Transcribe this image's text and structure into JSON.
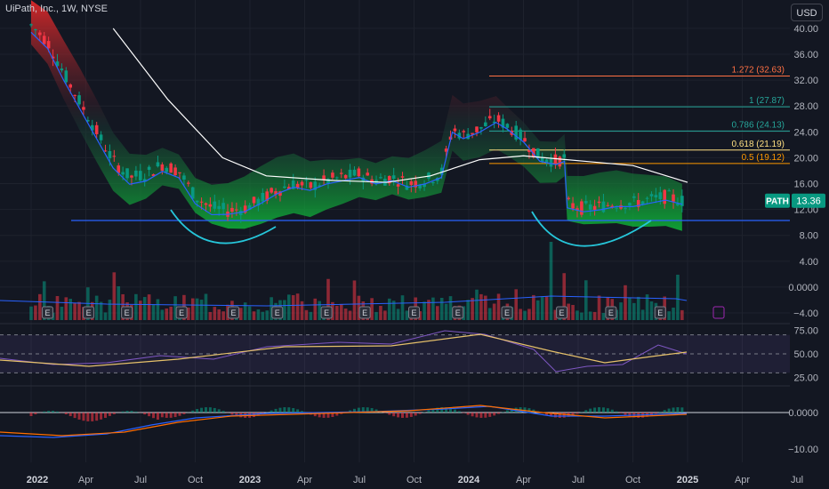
{
  "header": {
    "symbol_title": "UiPath, Inc., 1W, NYSE",
    "currency": "USD"
  },
  "price_badge": {
    "ticker": "PATH",
    "value": "13.36"
  },
  "colors": {
    "bg": "#131722",
    "grid": "#1e222d",
    "up": "#089981",
    "down": "#f23645",
    "sma": "#ffffff",
    "ema": "#2962ff",
    "support": "#2962ff",
    "arc": "#26c6da",
    "rsi": "#7e57c2",
    "rsi_ma": "#e6c16a",
    "macd": "#2962ff",
    "signal": "#ff6d00"
  },
  "chart_data": {
    "type": "candlestick",
    "x_ticks": [
      "2022",
      "Apr",
      "Jul",
      "Oct",
      "2023",
      "Apr",
      "Jul",
      "Oct",
      "2024",
      "Apr",
      "Jul",
      "Oct",
      "2025",
      "Apr",
      "Jul"
    ],
    "price_axis": {
      "ticks": [
        "40.00",
        "36.00",
        "32.00",
        "28.00",
        "24.00",
        "20.00",
        "16.00",
        "12.00",
        "8.00",
        "4.00",
        "0.0000",
        "−4.00"
      ]
    },
    "fib_levels": [
      {
        "label": "1.272 (32.63)",
        "price": 32.63,
        "color": "#ff7043"
      },
      {
        "label": "1 (27.87)",
        "price": 27.87,
        "color": "#26a69a"
      },
      {
        "label": "0.786 (24.13)",
        "price": 24.13,
        "color": "#26a69a"
      },
      {
        "label": "0.618 (21.19)",
        "price": 21.19,
        "color": "#ffe082"
      },
      {
        "label": "0.5 (19.12)",
        "price": 19.12,
        "color": "#ff9800"
      }
    ],
    "support_level": 10.3,
    "last_price": 13.36,
    "close_series": [
      {
        "t": 0.0,
        "p": 40.5
      },
      {
        "t": 0.3,
        "p": 38.0
      },
      {
        "t": 0.6,
        "p": 33.0
      },
      {
        "t": 0.9,
        "p": 28.5
      },
      {
        "t": 1.2,
        "p": 24.0
      },
      {
        "t": 1.5,
        "p": 19.5
      },
      {
        "t": 1.8,
        "p": 17.0
      },
      {
        "t": 2.1,
        "p": 17.5
      },
      {
        "t": 2.4,
        "p": 19.0
      },
      {
        "t": 2.7,
        "p": 18.0
      },
      {
        "t": 3.0,
        "p": 14.0
      },
      {
        "t": 3.3,
        "p": 12.3
      },
      {
        "t": 3.6,
        "p": 11.8
      },
      {
        "t": 3.9,
        "p": 12.2
      },
      {
        "t": 4.2,
        "p": 13.5
      },
      {
        "t": 4.5,
        "p": 15.0
      },
      {
        "t": 4.8,
        "p": 16.0
      },
      {
        "t": 5.1,
        "p": 15.5
      },
      {
        "t": 5.4,
        "p": 16.5
      },
      {
        "t": 5.7,
        "p": 17.0
      },
      {
        "t": 6.0,
        "p": 17.5
      },
      {
        "t": 6.3,
        "p": 16.5
      },
      {
        "t": 6.6,
        "p": 17.0
      },
      {
        "t": 6.9,
        "p": 16.0
      },
      {
        "t": 7.2,
        "p": 16.5
      },
      {
        "t": 7.5,
        "p": 17.5
      },
      {
        "t": 7.7,
        "p": 24.5
      },
      {
        "t": 7.9,
        "p": 23.5
      },
      {
        "t": 8.2,
        "p": 24.5
      },
      {
        "t": 8.5,
        "p": 26.0
      },
      {
        "t": 8.7,
        "p": 25.0
      },
      {
        "t": 9.0,
        "p": 23.0
      },
      {
        "t": 9.3,
        "p": 20.0
      },
      {
        "t": 9.6,
        "p": 19.5
      },
      {
        "t": 9.75,
        "p": 20.0
      },
      {
        "t": 9.8,
        "p": 12.8
      },
      {
        "t": 10.1,
        "p": 12.2
      },
      {
        "t": 10.4,
        "p": 12.5
      },
      {
        "t": 10.7,
        "p": 13.0
      },
      {
        "t": 11.0,
        "p": 13.0
      },
      {
        "t": 11.3,
        "p": 13.5
      },
      {
        "t": 11.6,
        "p": 14.0
      },
      {
        "t": 11.9,
        "p": 13.36
      }
    ],
    "sma_series": [
      {
        "t": 1.5,
        "p": 40
      },
      {
        "t": 2.5,
        "p": 29
      },
      {
        "t": 3.5,
        "p": 20
      },
      {
        "t": 4.3,
        "p": 17.2
      },
      {
        "t": 5.5,
        "p": 16.5
      },
      {
        "t": 6.5,
        "p": 16.2
      },
      {
        "t": 7.3,
        "p": 17.2
      },
      {
        "t": 8.2,
        "p": 19.7
      },
      {
        "t": 9.0,
        "p": 20.3
      },
      {
        "t": 10.2,
        "p": 19.4
      },
      {
        "t": 11.0,
        "p": 18.8
      },
      {
        "t": 12.0,
        "p": 16.2
      }
    ],
    "rsi": {
      "ticks": [
        "75.00",
        "50.00",
        "25.00"
      ],
      "upper": 70,
      "lower": 30
    },
    "macd": {
      "ticks": [
        "0.0000",
        "−10.00"
      ]
    }
  }
}
